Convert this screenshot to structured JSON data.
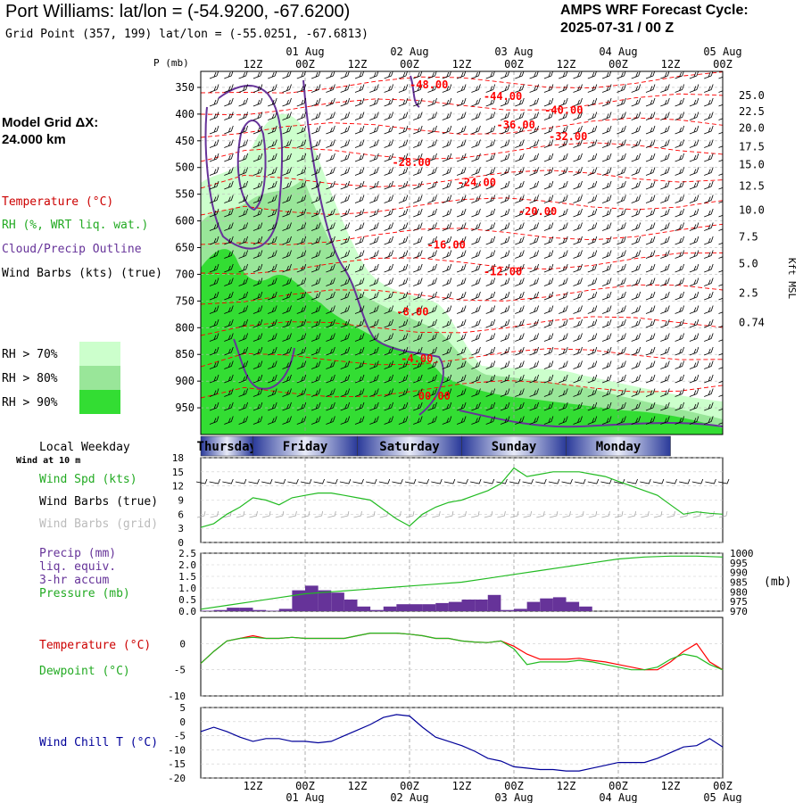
{
  "header": {
    "title": "Port Williams:  lat/lon = (-54.9200, -67.6200)",
    "subtitle": "Grid Point (357, 199) lat/lon = (-55.0251, -67.6813)",
    "cycle_line1": "AMPS WRF Forecast Cycle:",
    "cycle_line2": "2025-07-31 / 00  Z"
  },
  "legend": {
    "grid_label": "Model Grid ΔX:",
    "grid_value": " 24.000 km",
    "temperature": "Temperature (°C)",
    "rh": "RH (%, WRT liq. wat.)",
    "cloud": "Cloud/Precip Outline",
    "wind": "Wind Barbs (kts) (true)",
    "rh70": "RH > 70%",
    "rh80": "RH > 80%",
    "rh90": "RH > 90%",
    "colors": {
      "rh70": "#ccffcc",
      "rh80": "#99e699",
      "rh90": "#33dd33",
      "temp": "#ff0000",
      "cloud": "#663399"
    }
  },
  "time_axis": {
    "top_dates": [
      "01 Aug",
      "02 Aug",
      "03 Aug",
      "04 Aug",
      "05 Aug"
    ],
    "top_date_hours": [
      24,
      48,
      72,
      96,
      120
    ],
    "hour_labels": [
      "12Z",
      "00Z",
      "12Z",
      "00Z",
      "12Z",
      "00Z",
      "12Z",
      "00Z",
      "12Z",
      "00Z"
    ],
    "hour_label_hours": [
      12,
      24,
      36,
      48,
      60,
      72,
      84,
      96,
      108,
      120
    ],
    "bottom_dates": [
      "01 Aug",
      "02 Aug",
      "03 Aug",
      "04 Aug",
      "05 Aug"
    ],
    "range_hours": [
      0,
      120
    ],
    "weekdays": [
      "Thursday",
      "Friday",
      "Saturday",
      "Sunday",
      "Monday"
    ],
    "weekday_label": "Local Weekday",
    "wind_height": "Wind at 10 m"
  },
  "chart_data": [
    {
      "type": "heatmap",
      "name": "cross-section",
      "ylabel": "P (mb)",
      "y2label": "Kft MSL",
      "pressure_ticks": [
        350,
        400,
        450,
        500,
        550,
        600,
        650,
        700,
        750,
        800,
        850,
        900,
        950
      ],
      "ylim": [
        320,
        1000
      ],
      "kft_labels": [
        {
          "label": "25.0",
          "p": 365
        },
        {
          "label": "22.5",
          "p": 395
        },
        {
          "label": "20.0",
          "p": 426
        },
        {
          "label": "17.5",
          "p": 461
        },
        {
          "label": "15.0",
          "p": 495
        },
        {
          "label": "12.5",
          "p": 535
        },
        {
          "label": "10.0",
          "p": 580
        },
        {
          "label": "7.5",
          "p": 630
        },
        {
          "label": "5.0",
          "p": 680
        },
        {
          "label": "2.5",
          "p": 735
        },
        {
          "label": "0.74",
          "p": 790
        }
      ],
      "temp_labels": [
        {
          "text": "-48.00",
          "x": 48,
          "p": 345
        },
        {
          "text": "-44.00",
          "x": 65,
          "p": 367
        },
        {
          "text": "-40.00",
          "x": 79,
          "p": 393
        },
        {
          "text": "-36.00",
          "x": 68,
          "p": 420
        },
        {
          "text": "-32.00",
          "x": 80,
          "p": 442
        },
        {
          "text": "-28.00",
          "x": 44,
          "p": 490
        },
        {
          "text": "-24.00",
          "x": 59,
          "p": 528
        },
        {
          "text": "-20.00",
          "x": 73,
          "p": 582
        },
        {
          "text": "-16.00",
          "x": 52,
          "p": 645
        },
        {
          "text": "-12.00",
          "x": 65,
          "p": 695
        },
        {
          "text": "-8.00",
          "x": 45,
          "p": 770
        },
        {
          "text": "-4.00",
          "x": 46,
          "p": 858
        },
        {
          "text": "00.00",
          "x": 50,
          "p": 928
        }
      ]
    },
    {
      "type": "line",
      "name": "wind",
      "ylim": [
        0,
        18
      ],
      "yticks": [
        0,
        3,
        6,
        9,
        12,
        15,
        18
      ],
      "legend": [
        "Wind Spd (kts)",
        "Wind Barbs (true)",
        "Wind Barbs (grid)"
      ],
      "colors": [
        "#22bb22",
        "#000000",
        "#aaaaaa"
      ],
      "x": [
        0,
        3,
        6,
        9,
        12,
        15,
        18,
        21,
        24,
        27,
        30,
        33,
        36,
        39,
        42,
        45,
        48,
        51,
        54,
        57,
        60,
        63,
        66,
        69,
        72,
        75,
        78,
        81,
        84,
        87,
        90,
        93,
        96,
        99,
        102,
        105,
        108,
        111,
        114,
        117,
        120
      ],
      "speed": [
        3.2,
        4,
        6,
        7.5,
        9.5,
        9,
        8,
        9.5,
        10,
        10.5,
        10.5,
        10,
        9.5,
        9,
        7,
        5,
        3.5,
        6,
        7.5,
        8.5,
        9,
        10,
        11,
        12.5,
        15.8,
        14,
        14.5,
        15,
        15,
        15,
        14.5,
        14,
        13,
        12,
        11,
        10,
        8,
        6,
        6.5,
        6.2,
        6
      ]
    },
    {
      "type": "bar",
      "name": "precip-pressure",
      "ylim": [
        0,
        2.5
      ],
      "yticks": [
        "0.0",
        "0.5",
        "1.0",
        "1.5",
        "2.0",
        "2.5"
      ],
      "y2lim": [
        970,
        1000
      ],
      "y2ticks": [
        970,
        975,
        980,
        985,
        990,
        995,
        1000
      ],
      "y2label": "(mb)",
      "legend": [
        "Precip (mm)",
        "liq. equiv.",
        "3-hr accum",
        "Pressure (mb)"
      ],
      "colors": [
        "#663399",
        "#22bb22"
      ],
      "precip_x": [
        3,
        6,
        9,
        12,
        15,
        18,
        21,
        24,
        27,
        30,
        33,
        36,
        39,
        42,
        45,
        48,
        51,
        54,
        57,
        60,
        63,
        66,
        69,
        72,
        75,
        78,
        81,
        84,
        87,
        90
      ],
      "precip": [
        0.02,
        0.05,
        0.15,
        0.15,
        0.05,
        0.02,
        0.1,
        0.9,
        1.1,
        0.9,
        0.8,
        0.5,
        0.2,
        0.05,
        0.2,
        0.3,
        0.3,
        0.3,
        0.35,
        0.4,
        0.5,
        0.5,
        0.7,
        0.05,
        0.1,
        0.4,
        0.55,
        0.6,
        0.4,
        0.2
      ],
      "pressure_x": [
        0,
        6,
        12,
        18,
        24,
        30,
        36,
        42,
        48,
        54,
        60,
        66,
        72,
        78,
        84,
        90,
        96,
        102,
        108,
        114,
        120
      ],
      "pressure": [
        971,
        973,
        975,
        977,
        979,
        980,
        981,
        982,
        983,
        984,
        985,
        987,
        989,
        991,
        993,
        995,
        997,
        998,
        998.5,
        998.5,
        998
      ]
    },
    {
      "type": "line",
      "name": "temperature",
      "ylim": [
        -10,
        5
      ],
      "yticks": [
        0,
        -5,
        -10
      ],
      "legend": [
        "Temperature (°C)",
        "Dewpoint (°C)"
      ],
      "colors": [
        "#ff0000",
        "#22bb22"
      ],
      "x": [
        0,
        3,
        6,
        9,
        12,
        15,
        18,
        21,
        24,
        27,
        30,
        33,
        36,
        39,
        42,
        45,
        48,
        51,
        54,
        57,
        60,
        63,
        66,
        69,
        72,
        75,
        78,
        81,
        84,
        87,
        90,
        93,
        96,
        99,
        102,
        105,
        108,
        111,
        114,
        117,
        120
      ],
      "temperature": [
        -3.8,
        -1.5,
        0.5,
        1.0,
        1.5,
        1.0,
        1.0,
        1.2,
        1.0,
        1.0,
        1.0,
        1.0,
        1.5,
        2.0,
        2.0,
        2.0,
        1.8,
        1.5,
        1.0,
        1.0,
        0.5,
        0.3,
        0.2,
        0.5,
        -0.5,
        -2.0,
        -3.0,
        -3.0,
        -3.0,
        -2.8,
        -3.2,
        -3.5,
        -4.0,
        -4.5,
        -5.0,
        -5.0,
        -3.5,
        -1.5,
        0.0,
        -3.5,
        -5.0
      ],
      "dewpoint": [
        -3.8,
        -1.5,
        0.5,
        1.0,
        1.2,
        1.0,
        1.0,
        1.2,
        1.0,
        1.0,
        1.0,
        1.0,
        1.5,
        2.0,
        2.0,
        2.0,
        1.8,
        1.5,
        1.0,
        1.0,
        0.5,
        0.3,
        0.2,
        0.5,
        -1.0,
        -4.0,
        -3.5,
        -3.5,
        -3.5,
        -3.2,
        -3.5,
        -4.0,
        -4.5,
        -5.0,
        -5.0,
        -4.5,
        -3.0,
        -2.0,
        -2.5,
        -4.0,
        -5.0
      ]
    },
    {
      "type": "line",
      "name": "wind-chill",
      "ylim": [
        -20,
        5
      ],
      "yticks": [
        5,
        0,
        -5,
        -10,
        -15,
        -20
      ],
      "legend": [
        "Wind Chill T (°C)"
      ],
      "colors": [
        "#000099"
      ],
      "x": [
        0,
        3,
        6,
        9,
        12,
        15,
        18,
        21,
        24,
        27,
        30,
        33,
        36,
        39,
        42,
        45,
        48,
        51,
        54,
        57,
        60,
        63,
        66,
        69,
        72,
        75,
        78,
        81,
        84,
        87,
        90,
        93,
        96,
        99,
        102,
        105,
        108,
        111,
        114,
        117,
        120
      ],
      "values": [
        -3.5,
        -2.0,
        -3.5,
        -5.5,
        -7.0,
        -6.0,
        -6.0,
        -7.0,
        -7.0,
        -7.5,
        -7.0,
        -5.0,
        -3.0,
        -1.0,
        1.5,
        2.5,
        2.0,
        -2.0,
        -5.5,
        -7.0,
        -8.5,
        -10.5,
        -13.0,
        -14.0,
        -16.0,
        -16.5,
        -17.0,
        -17.0,
        -17.5,
        -17.5,
        -16.5,
        -15.5,
        -14.5,
        -14.5,
        -14.5,
        -13.0,
        -11.0,
        -9.0,
        -8.5,
        -6.0,
        -9.0
      ]
    }
  ]
}
